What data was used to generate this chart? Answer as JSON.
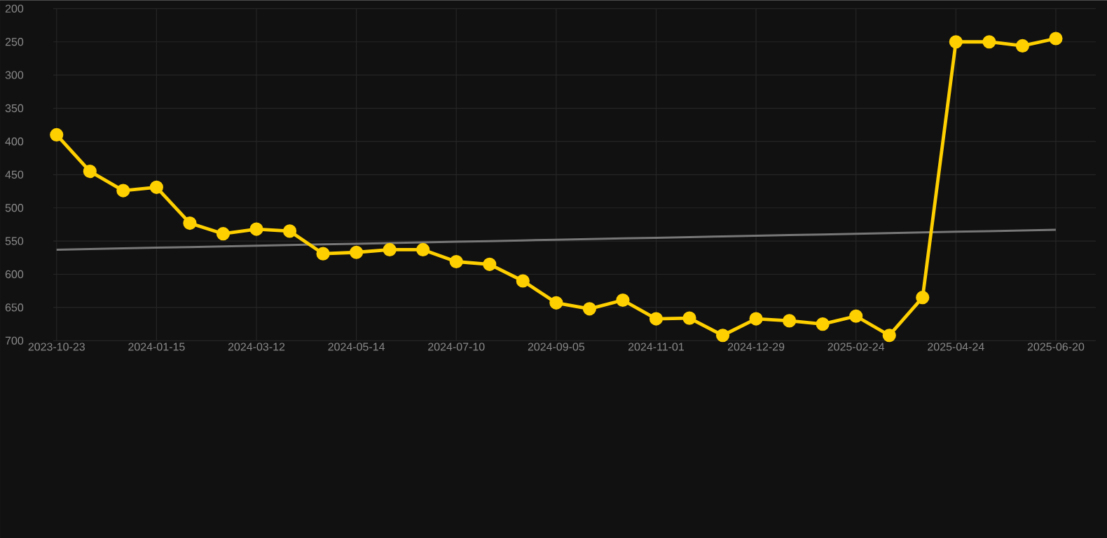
{
  "chart_data": {
    "type": "line",
    "categories": [
      "2023-10-23",
      null,
      null,
      "2024-01-15",
      null,
      null,
      "2024-03-12",
      null,
      null,
      "2024-05-14",
      null,
      null,
      "2024-07-10",
      null,
      null,
      "2024-09-05",
      null,
      null,
      "2024-11-01",
      null,
      null,
      "2024-12-29",
      null,
      null,
      "2025-02-24",
      null,
      null,
      "2025-04-24",
      null,
      null,
      "2025-06-20"
    ],
    "series": [
      {
        "color": "#ffd000",
        "marker": "circle",
        "line_style": "solid",
        "values": [
          390,
          445,
          474,
          469,
          523,
          539,
          532,
          535,
          569,
          567,
          563,
          563,
          581,
          585,
          610,
          643,
          652,
          639,
          667,
          666,
          692,
          667,
          670,
          675,
          663,
          692,
          635,
          250,
          250,
          256,
          245
        ]
      },
      {
        "color": "#777777",
        "marker": "none",
        "line_style": "solid",
        "values": [
          563,
          562,
          561,
          560,
          559,
          558,
          557,
          556,
          555,
          554,
          553,
          552,
          551,
          550,
          549,
          548,
          547,
          546,
          545,
          544,
          543,
          542,
          541,
          540,
          539,
          538,
          537,
          536,
          535,
          534,
          533
        ]
      }
    ],
    "ylim": [
      700,
      200
    ],
    "yticks": [
      200,
      250,
      300,
      350,
      400,
      450,
      500,
      550,
      600,
      650,
      700
    ],
    "grid": true
  }
}
